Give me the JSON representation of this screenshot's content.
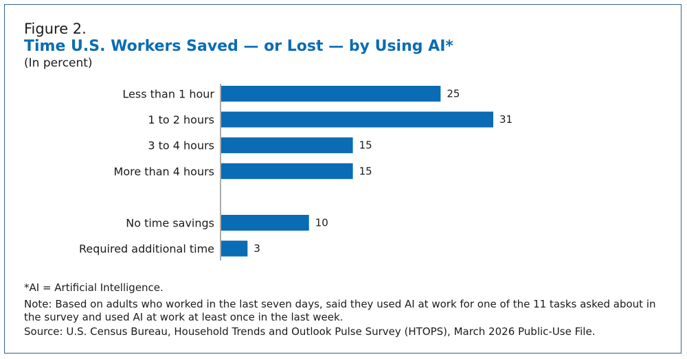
{
  "figure_label": "Figure 2.",
  "title": "Time U.S. Workers Saved — or Lost — by Using AI*",
  "subtitle": "(In percent)",
  "chart_data": {
    "type": "bar",
    "orientation": "horizontal",
    "categories": [
      "Less than 1 hour",
      "1 to 2 hours",
      "3 to 4 hours",
      "More than 4 hours",
      "No time savings",
      "Required additional time"
    ],
    "values": [
      25,
      31,
      15,
      15,
      10,
      3
    ],
    "groups": [
      [
        0,
        1,
        2,
        3
      ],
      [
        4,
        5
      ]
    ],
    "data_labels": [
      "25",
      "31",
      "15",
      "15",
      "10",
      "3"
    ],
    "xlim": [
      0,
      31
    ],
    "grid": false,
    "bar_color": "#0a6cb4"
  },
  "notes": {
    "footnote": "*AI = Artificial Intelligence.",
    "note": "Note: Based on adults who worked in the last seven days, said they used AI at work for one of the 11 tasks asked about in the survey and used AI at work at least once in the last week.",
    "source": "Source: U.S. Census Bureau, Household Trends and Outlook Pulse Survey (HTOPS), March 2026 Public-Use File."
  },
  "colors": {
    "border": "#2e5f9e",
    "title": "#0a6cb4"
  }
}
